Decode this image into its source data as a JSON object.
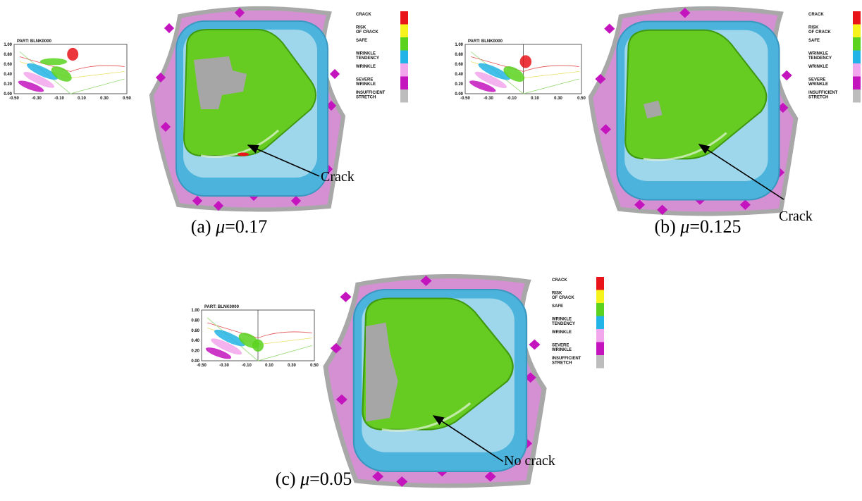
{
  "fld": {
    "part": "PART: BLNK0000",
    "yticks": [
      "1.00",
      "0.80",
      "0.60",
      "0.40",
      "0.20",
      "0.00"
    ],
    "xticks": [
      "-0.50",
      "-0.30",
      "-0.10",
      "0.10",
      "0.30",
      "0.50"
    ]
  },
  "legend": [
    {
      "lines": [
        "CRACK"
      ],
      "color": "#e8141a"
    },
    {
      "lines": [
        "RISK",
        "OF CRACK"
      ],
      "color": "#f5f21c"
    },
    {
      "lines": [
        "SAFE"
      ],
      "color": "#5ad21e"
    },
    {
      "lines": [
        "WRINKLE",
        "TENDENCY"
      ],
      "color": "#22b4e6"
    },
    {
      "lines": [
        "WRINKLE"
      ],
      "color": "#f2a6ec"
    },
    {
      "lines": [
        "SEVERE",
        "WRINKLE"
      ],
      "color": "#c414be"
    },
    {
      "lines": [
        "INSUFFICIENT",
        "STRETCH"
      ],
      "color": "#bdbdbd"
    }
  ],
  "panels": [
    {
      "caption": {
        "label": "(a) ",
        "symbol": "μ",
        "value": "=0.17"
      },
      "annotation": "Crack"
    },
    {
      "caption": {
        "label": "(b) ",
        "symbol": "μ",
        "value": "=0.125"
      },
      "annotation": "Crack"
    },
    {
      "caption": {
        "label": "(c) ",
        "symbol": "μ",
        "value": "=0.05"
      },
      "annotation": "No crack"
    }
  ]
}
